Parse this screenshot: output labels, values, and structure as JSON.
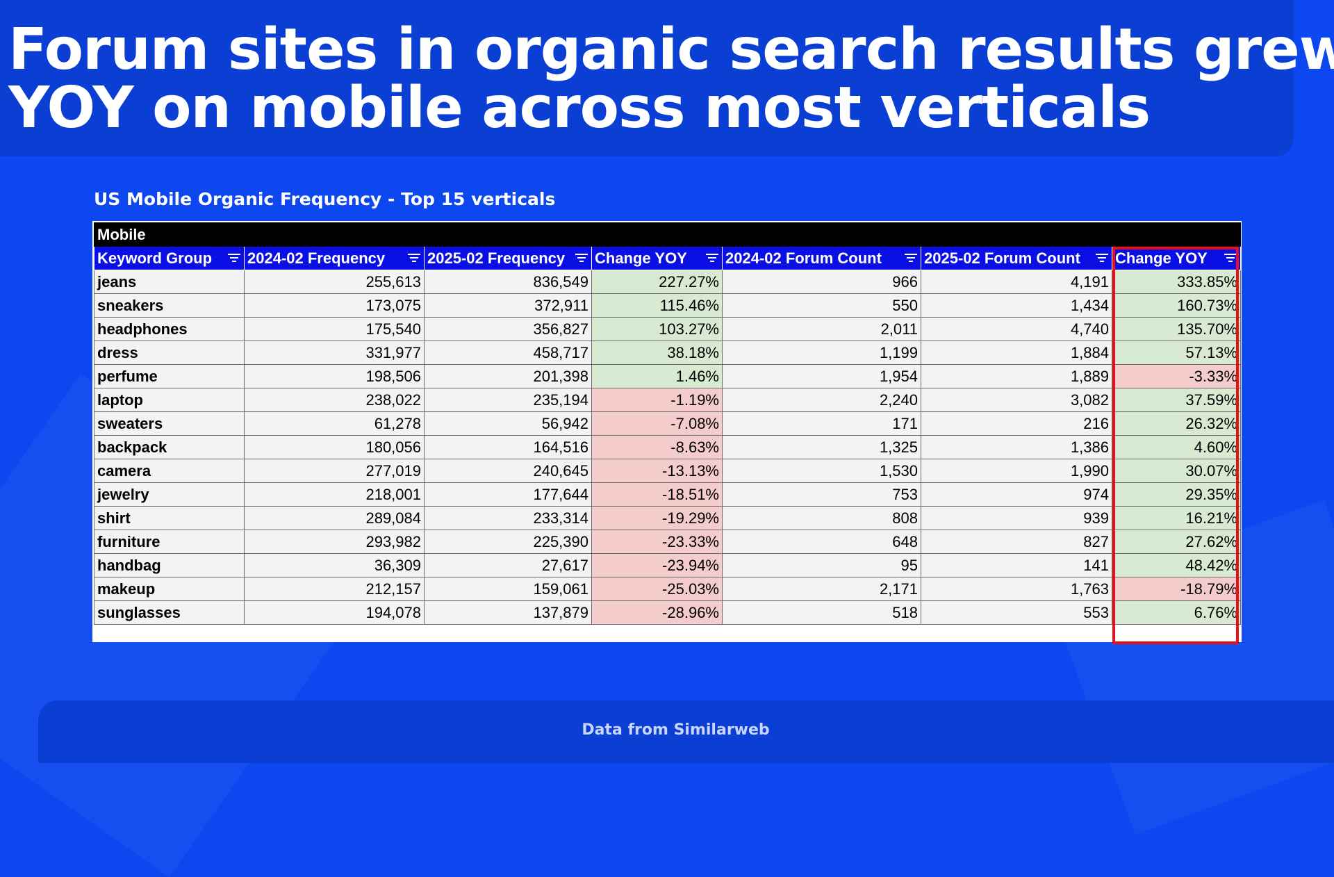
{
  "title": {
    "line1": "Forum sites in organic search results grew",
    "line2": "YOY on mobile across most verticals"
  },
  "footer": {
    "source": "Data from Similarweb"
  },
  "colors": {
    "background": "#0d47f0",
    "header_fill": "#0a0fe4",
    "positive_fill": "#d9ead3",
    "negative_fill": "#f4cccc",
    "highlight_border": "#e8101b"
  },
  "chart_data": {
    "type": "table",
    "title": "US Mobile Organic Frequency - Top 15 verticals",
    "group_label": "Mobile",
    "columns": [
      "Keyword Group",
      "2024-02 Frequency",
      "2025-02 Frequency",
      "Change YOY",
      "2024-02 Forum Count",
      "2025-02 Forum Count",
      "Change YOY"
    ],
    "rows": [
      [
        "jeans",
        "255,613",
        "836,549",
        "227.27%",
        "966",
        "4,191",
        "333.85%"
      ],
      [
        "sneakers",
        "173,075",
        "372,911",
        "115.46%",
        "550",
        "1,434",
        "160.73%"
      ],
      [
        "headphones",
        "175,540",
        "356,827",
        "103.27%",
        "2,011",
        "4,740",
        "135.70%"
      ],
      [
        "dress",
        "331,977",
        "458,717",
        "38.18%",
        "1,199",
        "1,884",
        "57.13%"
      ],
      [
        "perfume",
        "198,506",
        "201,398",
        "1.46%",
        "1,954",
        "1,889",
        "-3.33%"
      ],
      [
        "laptop",
        "238,022",
        "235,194",
        "-1.19%",
        "2,240",
        "3,082",
        "37.59%"
      ],
      [
        "sweaters",
        "61,278",
        "56,942",
        "-7.08%",
        "171",
        "216",
        "26.32%"
      ],
      [
        "backpack",
        "180,056",
        "164,516",
        "-8.63%",
        "1,325",
        "1,386",
        "4.60%"
      ],
      [
        "camera",
        "277,019",
        "240,645",
        "-13.13%",
        "1,530",
        "1,990",
        "30.07%"
      ],
      [
        "jewelry",
        "218,001",
        "177,644",
        "-18.51%",
        "753",
        "974",
        "29.35%"
      ],
      [
        "shirt",
        "289,084",
        "233,314",
        "-19.29%",
        "808",
        "939",
        "16.21%"
      ],
      [
        "furniture",
        "293,982",
        "225,390",
        "-23.33%",
        "648",
        "827",
        "27.62%"
      ],
      [
        "handbag",
        "36,309",
        "27,617",
        "-23.94%",
        "95",
        "141",
        "48.42%"
      ],
      [
        "makeup",
        "212,157",
        "159,061",
        "-25.03%",
        "2,171",
        "1,763",
        "-18.79%"
      ],
      [
        "sunglasses",
        "194,078",
        "137,879",
        "-28.96%",
        "518",
        "553",
        "6.76%"
      ]
    ],
    "highlighted_column": 6
  }
}
